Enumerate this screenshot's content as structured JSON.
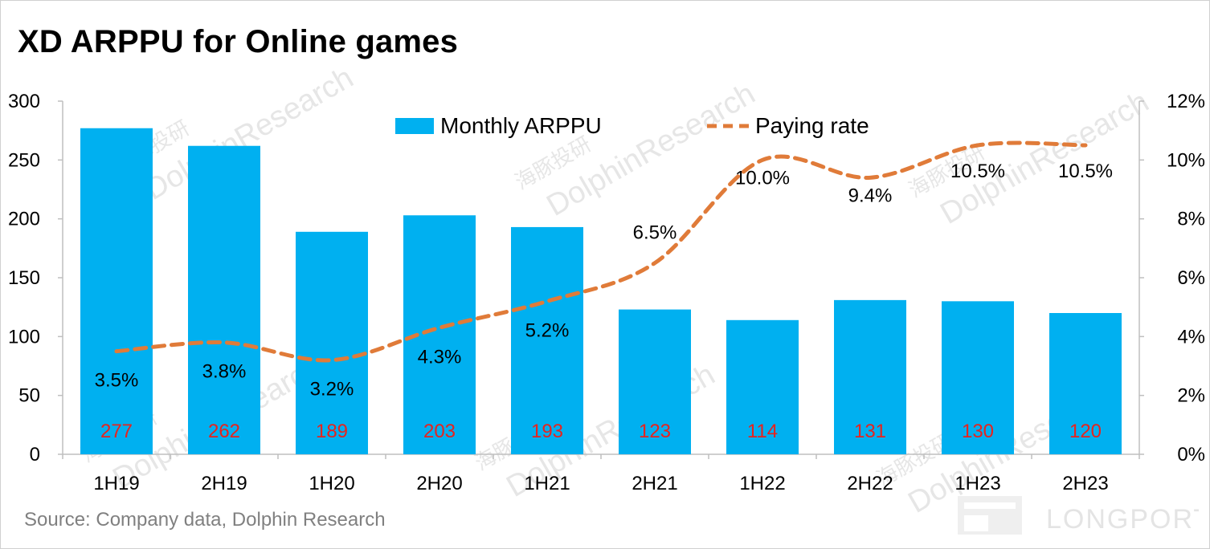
{
  "title": "XD ARPPU for Online games",
  "source": "Source: Company data, Dolphin Research",
  "watermark": {
    "cn": "海豚投研",
    "en": "DolphinResearch",
    "brand": "LONGPORT"
  },
  "colors": {
    "bar": "#00b0f0",
    "line": "#e07b39",
    "bar_label": "#e8231d"
  },
  "chart_data": {
    "type": "bar",
    "categories": [
      "1H19",
      "2H19",
      "1H20",
      "2H20",
      "1H21",
      "2H21",
      "1H22",
      "2H22",
      "1H23",
      "2H23"
    ],
    "series": [
      {
        "name": "Monthly ARPPU",
        "type": "bar",
        "axis": "left",
        "values": [
          277,
          262,
          189,
          203,
          193,
          123,
          114,
          131,
          130,
          120
        ],
        "labels": [
          "277",
          "262",
          "189",
          "203",
          "193",
          "123",
          "114",
          "131",
          "130",
          "120"
        ]
      },
      {
        "name": "Paying rate",
        "type": "line",
        "style": "dashed-smooth",
        "axis": "right",
        "values": [
          3.5,
          3.8,
          3.2,
          4.3,
          5.2,
          6.5,
          10.0,
          9.4,
          10.5,
          10.5
        ],
        "labels": [
          "3.5%",
          "3.8%",
          "3.2%",
          "4.3%",
          "5.2%",
          "6.5%",
          "10.0%",
          "9.4%",
          "10.5%",
          "10.5%"
        ]
      }
    ],
    "ylim": [
      0,
      300
    ],
    "y_ticks": [
      "0",
      "50",
      "100",
      "150",
      "200",
      "250",
      "300"
    ],
    "y2lim": [
      0,
      12
    ],
    "y2_ticks": [
      "0%",
      "2%",
      "4%",
      "6%",
      "8%",
      "10%",
      "12%"
    ],
    "grid": false,
    "legend": "top-center"
  }
}
